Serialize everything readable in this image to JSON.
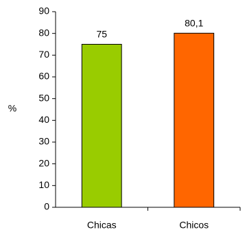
{
  "chart_data": {
    "type": "bar",
    "categories": [
      "Chicas",
      "Chicos"
    ],
    "values": [
      75,
      80.1
    ],
    "data_labels": [
      "75",
      "80,1"
    ],
    "ylabel": "%",
    "ylim": [
      0,
      90
    ],
    "yticks": [
      0,
      10,
      20,
      30,
      40,
      50,
      60,
      70,
      80,
      90
    ],
    "colors": [
      "#99cc00",
      "#ff6600"
    ],
    "grid": false,
    "legend": "none"
  }
}
